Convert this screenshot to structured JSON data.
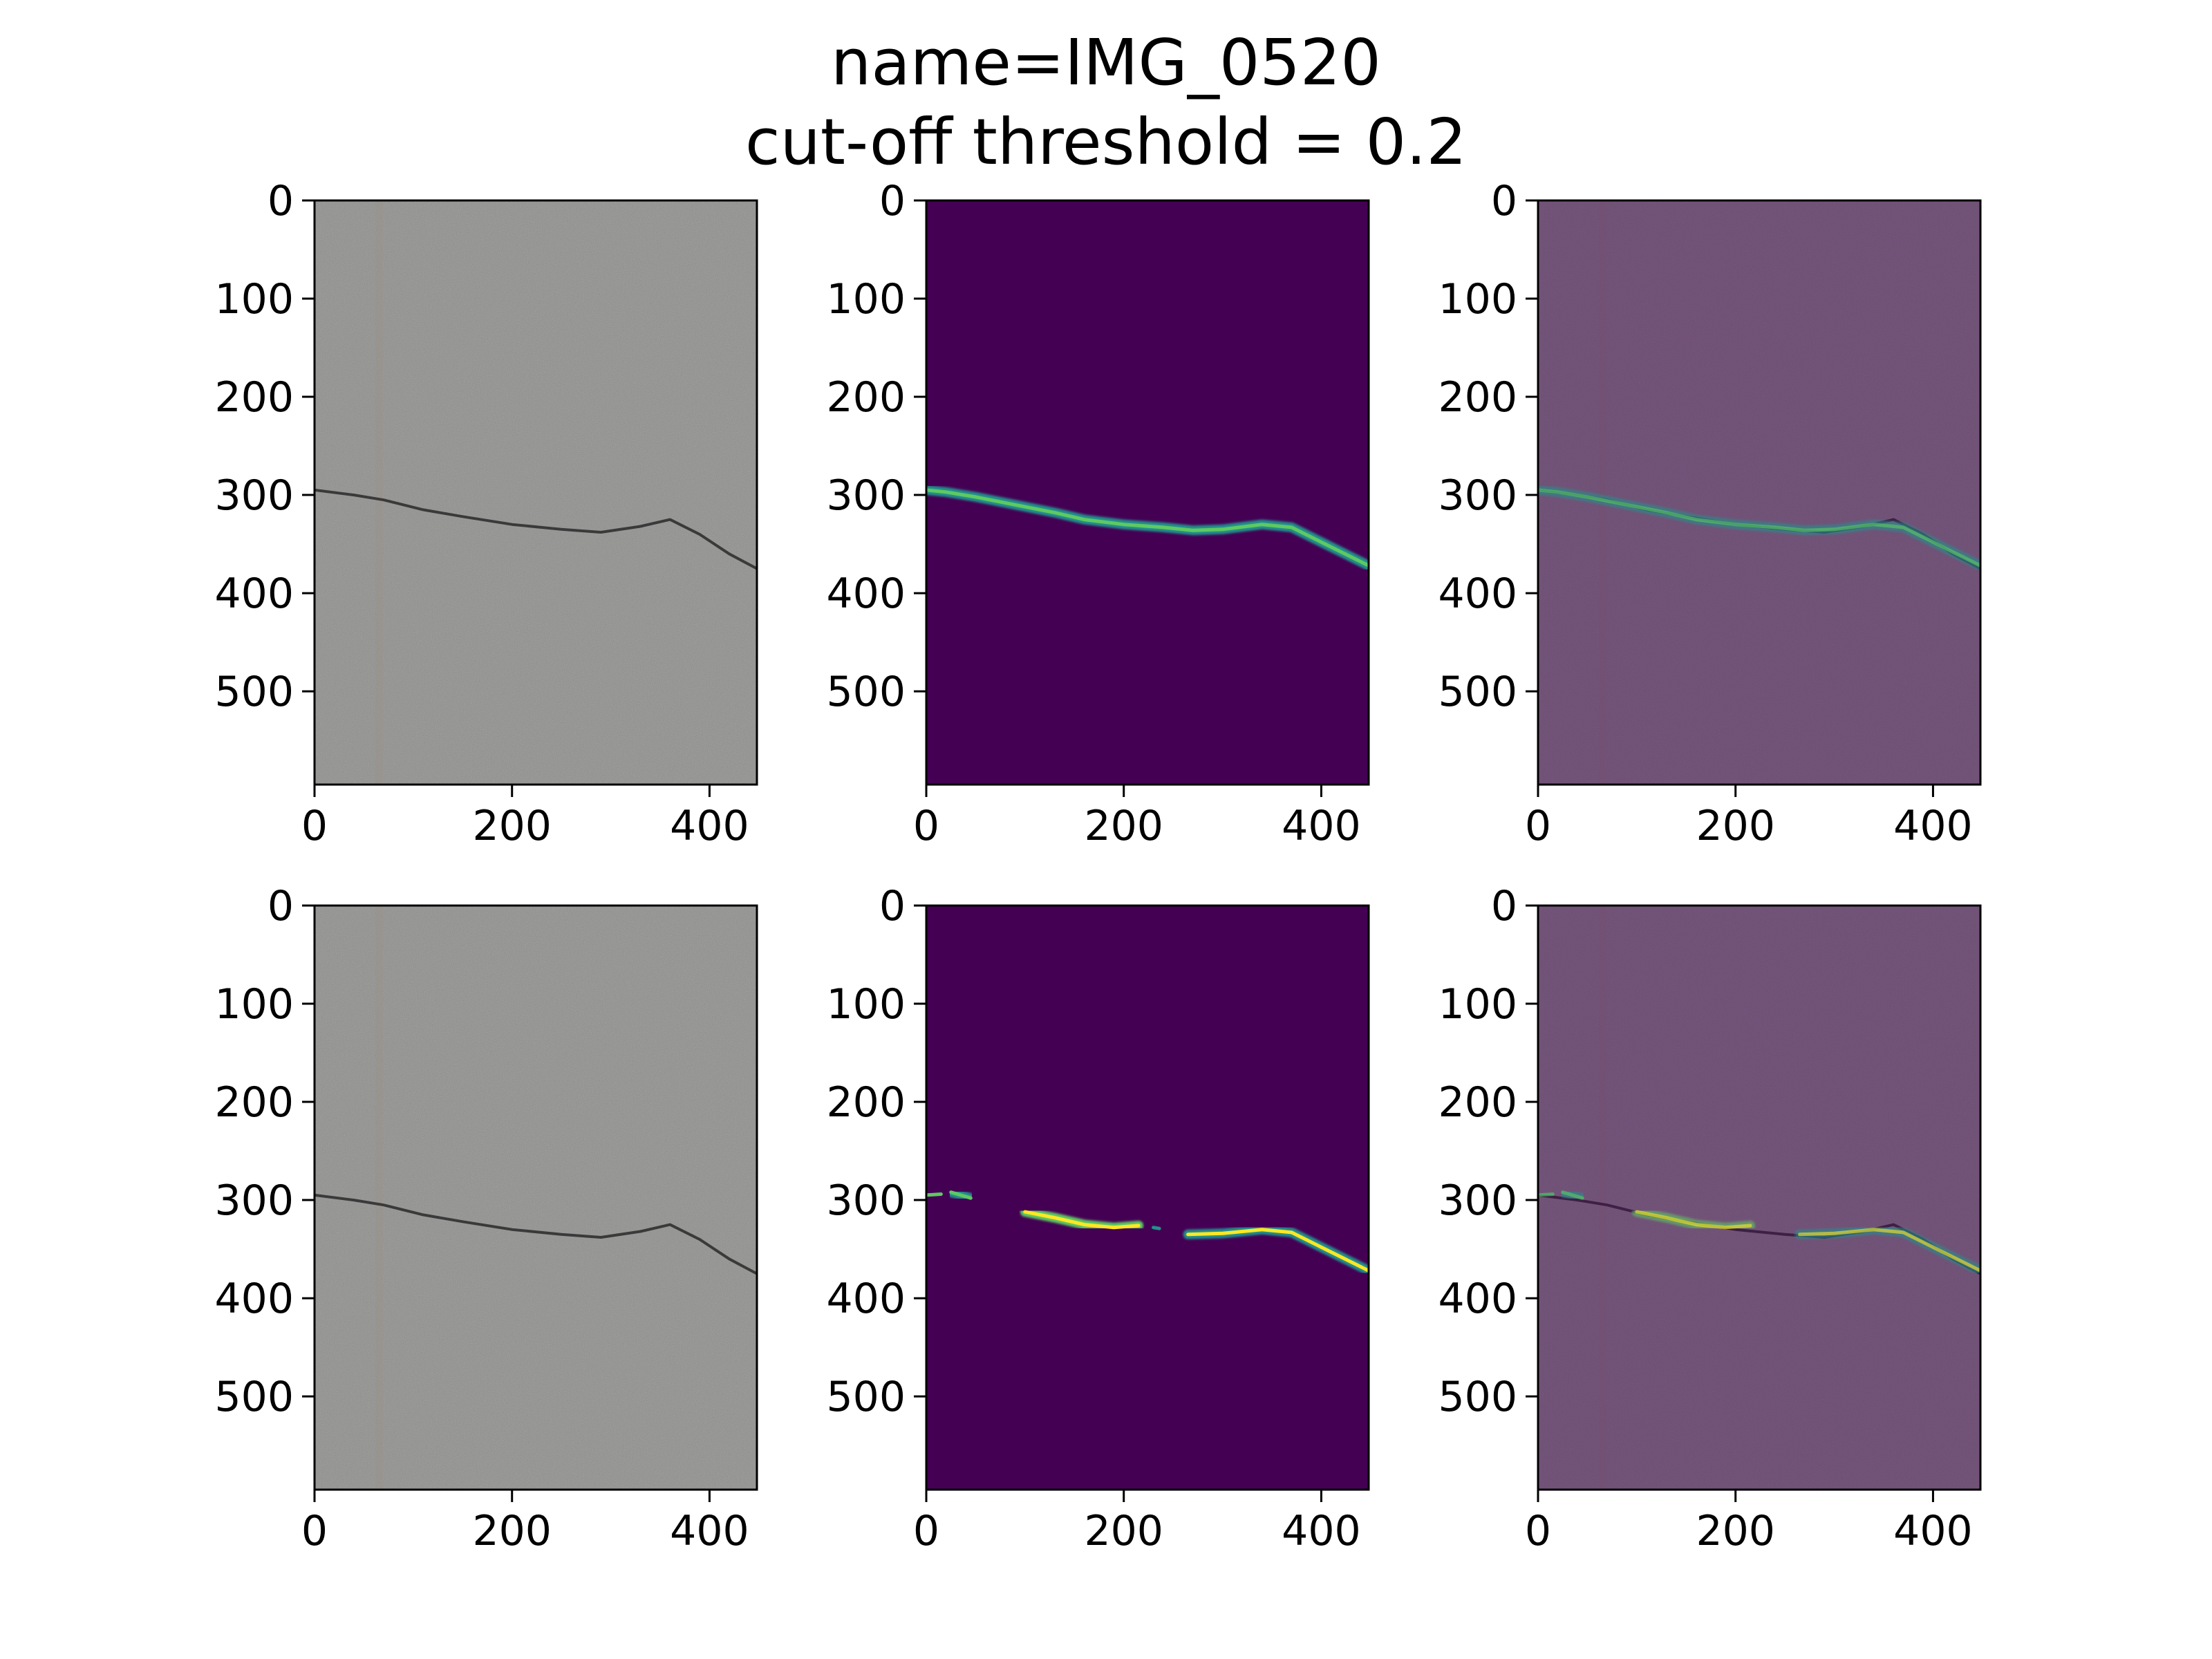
{
  "figure": {
    "title_line1": "name=IMG_0520",
    "title_line2": "cut-off threshold = 0.2"
  },
  "colors": {
    "concrete": "#8f8f8d",
    "viridis_background": "#440154",
    "overlay_purple": "#6f5872",
    "crack_dark": "#3a3a3a",
    "viridis_mid": "#21918c",
    "viridis_high": "#b5de2b"
  },
  "chart_data": [
    {
      "type": "image",
      "panel": "original",
      "row": 1,
      "xlim": [
        0,
        448
      ],
      "ylim": [
        595,
        0
      ],
      "xticks": [
        0,
        200,
        400
      ],
      "yticks": [
        0,
        100,
        200,
        300,
        400,
        500
      ],
      "crack_path": [
        [
          0,
          295
        ],
        [
          40,
          300
        ],
        [
          70,
          305
        ],
        [
          110,
          315
        ],
        [
          150,
          322
        ],
        [
          200,
          330
        ],
        [
          250,
          335
        ],
        [
          290,
          338
        ],
        [
          330,
          332
        ],
        [
          360,
          325
        ],
        [
          390,
          340
        ],
        [
          420,
          360
        ],
        [
          448,
          375
        ]
      ]
    },
    {
      "type": "heatmap",
      "panel": "prediction",
      "row": 1,
      "xlim": [
        0,
        448
      ],
      "ylim": [
        595,
        0
      ],
      "xticks": [
        0,
        200,
        400
      ],
      "yticks": [
        0,
        100,
        200,
        300,
        400,
        500
      ],
      "segments": [
        {
          "points": [
            [
              0,
              295
            ],
            [
              20,
              297
            ],
            [
              50,
              302
            ],
            [
              90,
              310
            ],
            [
              130,
              318
            ],
            [
              160,
              325
            ],
            [
              200,
              330
            ],
            [
              240,
              333
            ],
            [
              270,
              336
            ],
            [
              300,
              335
            ],
            [
              340,
              330
            ],
            [
              370,
              333
            ],
            [
              400,
              348
            ],
            [
              430,
              363
            ],
            [
              448,
              372
            ]
          ],
          "intensity": 0.55
        }
      ]
    },
    {
      "type": "image",
      "panel": "overlay",
      "row": 1,
      "xlim": [
        0,
        448
      ],
      "ylim": [
        595,
        0
      ],
      "xticks": [
        0,
        200,
        400
      ],
      "yticks": [
        0,
        100,
        200,
        300,
        400,
        500
      ],
      "segments": [
        {
          "points": [
            [
              0,
              295
            ],
            [
              20,
              297
            ],
            [
              50,
              302
            ],
            [
              90,
              310
            ],
            [
              130,
              318
            ],
            [
              160,
              325
            ],
            [
              200,
              330
            ],
            [
              240,
              333
            ],
            [
              270,
              336
            ],
            [
              300,
              335
            ],
            [
              340,
              330
            ],
            [
              370,
              333
            ],
            [
              400,
              348
            ],
            [
              430,
              363
            ],
            [
              448,
              372
            ]
          ],
          "intensity": 0.55
        }
      ]
    },
    {
      "type": "image",
      "panel": "original",
      "row": 2,
      "xlim": [
        0,
        448
      ],
      "ylim": [
        595,
        0
      ],
      "xticks": [
        0,
        200,
        400
      ],
      "yticks": [
        0,
        100,
        200,
        300,
        400,
        500
      ],
      "crack_path": [
        [
          0,
          295
        ],
        [
          40,
          300
        ],
        [
          70,
          305
        ],
        [
          110,
          315
        ],
        [
          150,
          322
        ],
        [
          200,
          330
        ],
        [
          250,
          335
        ],
        [
          290,
          338
        ],
        [
          330,
          332
        ],
        [
          360,
          325
        ],
        [
          390,
          340
        ],
        [
          420,
          360
        ],
        [
          448,
          375
        ]
      ]
    },
    {
      "type": "heatmap",
      "panel": "prediction",
      "row": 2,
      "xlim": [
        0,
        448
      ],
      "ylim": [
        595,
        0
      ],
      "xticks": [
        0,
        200,
        400
      ],
      "yticks": [
        0,
        100,
        200,
        300,
        400,
        500
      ],
      "segments": [
        {
          "points": [
            [
              0,
              295
            ],
            [
              15,
              294
            ]
          ],
          "intensity": 0.6
        },
        {
          "points": [
            [
              25,
              292
            ],
            [
              45,
              298
            ]
          ],
          "intensity": 0.6
        },
        {
          "points": [
            [
              100,
              312
            ],
            [
              130,
              318
            ],
            [
              160,
              325
            ],
            [
              190,
              328
            ],
            [
              215,
              326
            ]
          ],
          "intensity": 0.85
        },
        {
          "points": [
            [
              230,
              328
            ],
            [
              236,
              329
            ]
          ],
          "intensity": 0.5
        },
        {
          "points": [
            [
              265,
              335
            ],
            [
              300,
              334
            ],
            [
              340,
              330
            ],
            [
              370,
              333
            ],
            [
              400,
              348
            ],
            [
              430,
              363
            ],
            [
              448,
              372
            ]
          ],
          "intensity": 0.8
        }
      ]
    },
    {
      "type": "image",
      "panel": "overlay",
      "row": 2,
      "xlim": [
        0,
        448
      ],
      "ylim": [
        595,
        0
      ],
      "xticks": [
        0,
        200,
        400
      ],
      "yticks": [
        0,
        100,
        200,
        300,
        400,
        500
      ],
      "segments": [
        {
          "points": [
            [
              0,
              295
            ],
            [
              15,
              294
            ]
          ],
          "intensity": 0.6
        },
        {
          "points": [
            [
              25,
              292
            ],
            [
              45,
              298
            ]
          ],
          "intensity": 0.6
        },
        {
          "points": [
            [
              100,
              312
            ],
            [
              130,
              318
            ],
            [
              160,
              325
            ],
            [
              190,
              328
            ],
            [
              215,
              326
            ]
          ],
          "intensity": 0.85
        },
        {
          "points": [
            [
              265,
              335
            ],
            [
              300,
              334
            ],
            [
              340,
              330
            ],
            [
              370,
              333
            ],
            [
              400,
              348
            ],
            [
              430,
              363
            ],
            [
              448,
              372
            ]
          ],
          "intensity": 0.8
        }
      ]
    }
  ]
}
